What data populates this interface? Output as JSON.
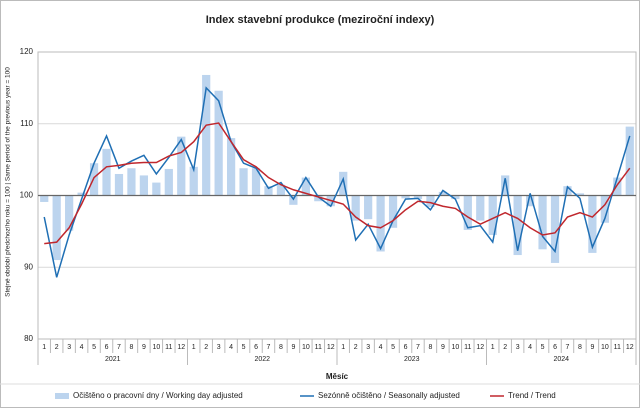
{
  "chart_data": {
    "type": "bar_line",
    "title": "Index stavební produkce (meziroční indexy)",
    "y_label": "Stejné období předchozího roku = 100 | Same period of the previous year = 100",
    "x_label": "Měsíc",
    "categories": [
      "1",
      "2",
      "3",
      "4",
      "5",
      "6",
      "7",
      "8",
      "9",
      "10",
      "11",
      "12",
      "1",
      "2",
      "3",
      "4",
      "5",
      "6",
      "7",
      "8",
      "9",
      "10",
      "11",
      "12",
      "1",
      "2",
      "3",
      "4",
      "5",
      "6",
      "7",
      "8",
      "9",
      "10",
      "11",
      "12",
      "1",
      "2",
      "3",
      "4",
      "5",
      "6",
      "7",
      "8",
      "9",
      "10",
      "11",
      "12"
    ],
    "years": [
      "2021",
      "2022",
      "2023",
      "2024"
    ],
    "baseline": 100,
    "ylim": [
      80,
      120
    ],
    "yticks": [
      80,
      90,
      100,
      110,
      120
    ],
    "grid": true,
    "series": [
      {
        "name": "Očištěno o pracovní dny / Working day adjusted",
        "kind": "bar",
        "color": "#bcd4ee",
        "values": [
          99.1,
          91,
          95.1,
          100.4,
          104.5,
          106.5,
          103,
          103.8,
          102.8,
          101.8,
          103.7,
          108.2,
          104,
          116.8,
          114.6,
          108,
          103.8,
          103.8,
          101.3,
          101.5,
          98.7,
          102.5,
          99.2,
          98.5,
          103.3,
          96.5,
          96.7,
          92.2,
          95.5,
          99.6,
          99.5,
          98.4,
          100.5,
          99.5,
          95.2,
          96.5,
          94.5,
          102.8,
          91.7,
          98.5,
          92.5,
          90.6,
          101.3,
          100.3,
          92,
          96.2,
          102.5,
          109.6
        ]
      },
      {
        "name": "Sezónně očištěno / Seasonally adjusted",
        "kind": "line",
        "color": "#1f6fb4",
        "values": [
          97,
          88.6,
          94.5,
          99.5,
          104.5,
          108.3,
          103.8,
          104.8,
          105.6,
          103,
          105.3,
          107.8,
          103.6,
          115,
          113.2,
          107.5,
          104.5,
          103.8,
          101,
          101.8,
          99.5,
          102.5,
          99.8,
          98.5,
          102.3,
          93.8,
          96,
          92.6,
          96.5,
          99.5,
          99.6,
          98,
          100.7,
          99.5,
          95.5,
          95.8,
          93.5,
          102.4,
          92.3,
          100.3,
          94.3,
          92.2,
          101.2,
          99.6,
          92.8,
          96.8,
          102.5,
          108.3
        ]
      },
      {
        "name": "Trend / Trend",
        "kind": "line",
        "color": "#c0272d",
        "values": [
          93.3,
          93.5,
          95.5,
          98.8,
          102.5,
          104,
          104.2,
          104.5,
          104.6,
          104.6,
          105.5,
          106,
          107.5,
          109.8,
          110.1,
          107.5,
          105,
          104,
          102.5,
          101.5,
          100.8,
          100.3,
          99.8,
          99.3,
          98.8,
          97,
          95.8,
          95.5,
          96.5,
          98,
          99.2,
          99,
          98.5,
          98.2,
          97,
          96,
          96.8,
          97.6,
          96.8,
          95.5,
          94.5,
          94.8,
          97,
          97.6,
          97,
          98.7,
          101.5,
          103.8
        ]
      }
    ]
  }
}
